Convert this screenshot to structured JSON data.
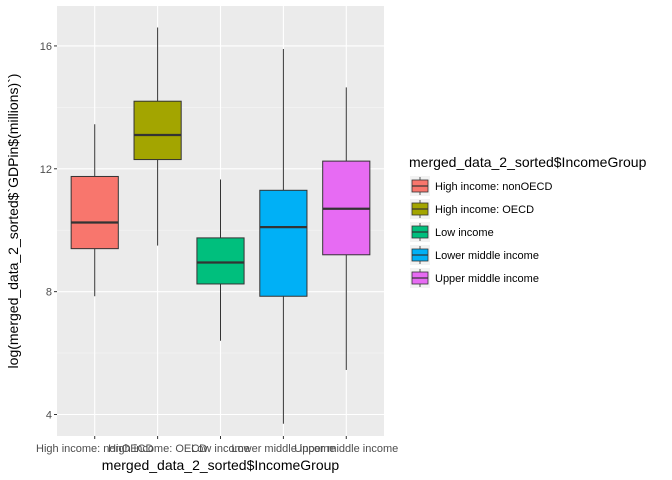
{
  "chart_data": {
    "type": "boxplot",
    "xlabel": "merged_data_2_sorted$IncomeGroup",
    "ylabel": "log(merged_data_2_sorted$`GDPin$(millions)`)",
    "ylim": [
      3.3,
      17.3
    ],
    "yticks": [
      4,
      8,
      12,
      16
    ],
    "grid": true,
    "legend": {
      "title": "merged_data_2_sorted$IncomeGroup",
      "position": "right"
    },
    "categories": [
      "High income: nonOECD",
      "High income: OECD",
      "Low income",
      "Lower middle income",
      "Upper middle income"
    ],
    "series": [
      {
        "name": "High income: nonOECD",
        "color": "#F8766D",
        "whisker_low": 7.85,
        "q1": 9.4,
        "median": 10.25,
        "q3": 11.75,
        "whisker_high": 13.45
      },
      {
        "name": "High income: OECD",
        "color": "#A3A500",
        "whisker_low": 9.5,
        "q1": 12.3,
        "median": 13.1,
        "q3": 14.2,
        "whisker_high": 16.6
      },
      {
        "name": "Low income",
        "color": "#00BF7D",
        "whisker_low": 6.4,
        "q1": 8.25,
        "median": 8.95,
        "q3": 9.75,
        "whisker_high": 11.65
      },
      {
        "name": "Lower middle income",
        "color": "#00B0F6",
        "whisker_low": 3.7,
        "q1": 7.85,
        "median": 10.1,
        "q3": 11.3,
        "whisker_high": 15.9
      },
      {
        "name": "Upper middle income",
        "color": "#E76BF3",
        "whisker_low": 5.45,
        "q1": 9.2,
        "median": 10.7,
        "q3": 12.25,
        "whisker_high": 14.65
      }
    ]
  }
}
